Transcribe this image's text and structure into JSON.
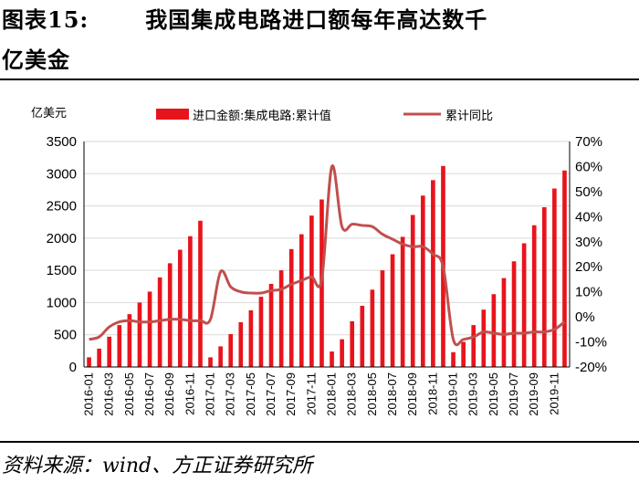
{
  "header": {
    "label": "图表15:",
    "title": "我国集成电路进口额每年高达数千",
    "title_line2": "亿美金"
  },
  "source": "资料来源：wind、方正证券研究所",
  "chart_data": {
    "type": "bar+line",
    "title": "我国集成电路进口额每年高达数千亿美金",
    "left_axis_unit": "亿美元",
    "left_ylim": [
      0,
      3500
    ],
    "left_ticks": [
      "0",
      "500",
      "1000",
      "1500",
      "2000",
      "2500",
      "3000",
      "3500"
    ],
    "right_ylim": [
      -20,
      70
    ],
    "right_ticks": [
      "-20%",
      "-10%",
      "0%",
      "10%",
      "20%",
      "30%",
      "40%",
      "50%",
      "60%",
      "70%"
    ],
    "categories": [
      "2016-01",
      "2016-02",
      "2016-03",
      "2016-04",
      "2016-05",
      "2016-06",
      "2016-07",
      "2016-08",
      "2016-09",
      "2016-10",
      "2016-11",
      "2016-12",
      "2017-01",
      "2017-02",
      "2017-03",
      "2017-04",
      "2017-05",
      "2017-06",
      "2017-07",
      "2017-08",
      "2017-09",
      "2017-10",
      "2017-11",
      "2017-12",
      "2018-01",
      "2018-02",
      "2018-03",
      "2018-04",
      "2018-05",
      "2018-06",
      "2018-07",
      "2018-08",
      "2018-09",
      "2018-10",
      "2018-11",
      "2018-12",
      "2019-01",
      "2019-02",
      "2019-03",
      "2019-04",
      "2019-05",
      "2019-06",
      "2019-07",
      "2019-08",
      "2019-09",
      "2019-10",
      "2019-11",
      "2019-12"
    ],
    "x_tick_labels": [
      "2016-01",
      "2016-03",
      "2016-05",
      "2016-07",
      "2016-09",
      "2016-11",
      "2017-01",
      "2017-03",
      "2017-05",
      "2017-07",
      "2017-09",
      "2017-11",
      "2018-01",
      "2018-03",
      "2018-05",
      "2018-07",
      "2018-09",
      "2018-11",
      "2019-01",
      "2019-03",
      "2019-05",
      "2019-07",
      "2019-09",
      "2019-11"
    ],
    "series": [
      {
        "name": "进口金额:集成电路:累计值",
        "kind": "bar",
        "axis": "left",
        "color": "#e8141c",
        "values": [
          150,
          285,
          470,
          650,
          820,
          1000,
          1170,
          1390,
          1610,
          1820,
          2030,
          2270,
          150,
          320,
          510,
          695,
          880,
          1090,
          1290,
          1500,
          1830,
          2060,
          2350,
          2600,
          240,
          430,
          710,
          950,
          1200,
          1500,
          1750,
          2020,
          2360,
          2660,
          2900,
          3120,
          230,
          390,
          650,
          890,
          1130,
          1380,
          1640,
          1920,
          2200,
          2480,
          2770,
          3050
        ]
      },
      {
        "name": "累计同比",
        "kind": "line",
        "axis": "right",
        "color": "#c0504d",
        "values": [
          -9,
          -8,
          -4,
          -2,
          -1.5,
          -2,
          -2,
          -1.5,
          -1,
          -1,
          -1.5,
          -1.5,
          -1,
          18,
          12,
          10,
          9.5,
          9.5,
          10.5,
          11,
          13,
          14.5,
          16,
          15,
          60,
          36,
          37,
          36.5,
          36,
          33,
          31,
          29,
          28,
          28,
          25,
          20,
          -9,
          -9,
          -8,
          -6,
          -6.5,
          -7,
          -6.5,
          -6.5,
          -6,
          -6,
          -5,
          -2
        ]
      }
    ]
  }
}
